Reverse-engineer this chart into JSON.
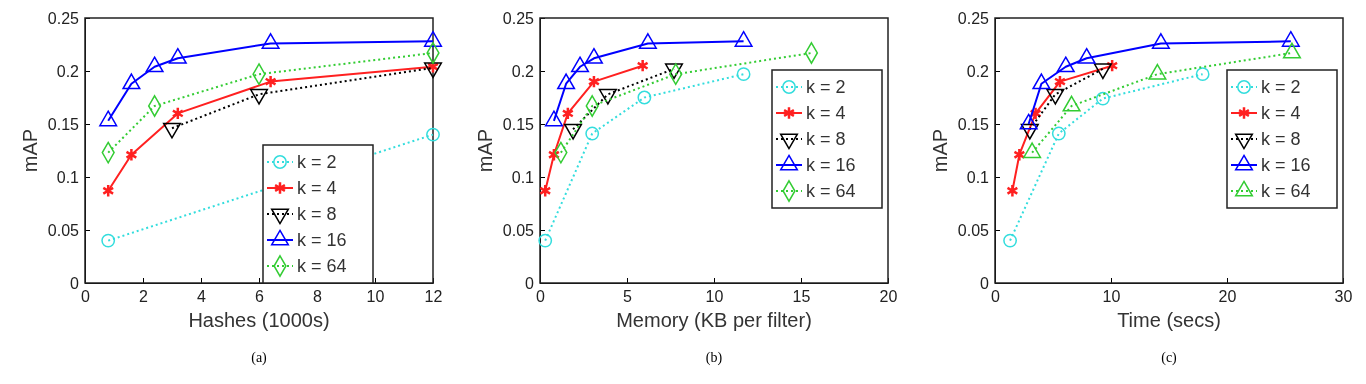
{
  "chart_data": [
    {
      "type": "line",
      "xlabel": "Hashes (1000s)",
      "ylabel": "mAP",
      "annotations": [
        "(a)"
      ],
      "xlim": [
        0,
        12
      ],
      "xticks": [
        0,
        2,
        4,
        6,
        8,
        10,
        12
      ],
      "ylim": [
        0,
        0.25
      ],
      "yticks": [
        0,
        0.05,
        0.1,
        0.15,
        0.2,
        0.25
      ],
      "grid": false,
      "legend": "bottom right",
      "series": [
        {
          "name": "k = 2",
          "color": "#33dddd",
          "marker": "circle",
          "line_style": "dotted",
          "x": [
            0.8,
            12
          ],
          "values": [
            0.04,
            0.14
          ]
        },
        {
          "name": "k = 4",
          "color": "#ff2020",
          "marker": "cross",
          "line_style": "solid",
          "x": [
            0.8,
            1.6,
            3.2,
            6.4,
            12
          ],
          "values": [
            0.087,
            0.121,
            0.16,
            0.19,
            0.204
          ]
        },
        {
          "name": "k = 8",
          "color": "#000000",
          "marker": "triangle-down",
          "line_style": "dotted",
          "x": [
            3,
            6,
            12
          ],
          "values": [
            0.146,
            0.178,
            0.203
          ]
        },
        {
          "name": "k = 16",
          "color": "#0000ff",
          "marker": "triangle",
          "line_style": "solid",
          "x": [
            0.8,
            1.6,
            2.4,
            3.2,
            6.4,
            12
          ],
          "values": [
            0.153,
            0.188,
            0.204,
            0.212,
            0.226,
            0.228
          ]
        },
        {
          "name": "k = 64",
          "color": "#33cc33",
          "marker": "diamond",
          "line_style": "dotted",
          "x": [
            0.8,
            2.4,
            6,
            12
          ],
          "values": [
            0.123,
            0.167,
            0.197,
            0.217
          ]
        }
      ]
    },
    {
      "type": "line",
      "xlabel": "Memory (KB per filter)",
      "ylabel": "mAP",
      "annotations": [
        "(b)"
      ],
      "xlim": [
        0,
        20
      ],
      "xticks": [
        0,
        5,
        10,
        15,
        20
      ],
      "ylim": [
        0,
        0.25
      ],
      "yticks": [
        0,
        0.05,
        0.1,
        0.15,
        0.2,
        0.25
      ],
      "grid": false,
      "legend": "right",
      "series": [
        {
          "name": "k = 2",
          "color": "#33dddd",
          "marker": "circle",
          "line_style": "dotted",
          "x": [
            0.3,
            3,
            6,
            11.7
          ],
          "values": [
            0.04,
            0.141,
            0.175,
            0.197
          ]
        },
        {
          "name": "k = 4",
          "color": "#ff2020",
          "marker": "cross",
          "line_style": "solid",
          "x": [
            0.3,
            0.8,
            1.6,
            3.1,
            5.9
          ],
          "values": [
            0.087,
            0.121,
            0.16,
            0.19,
            0.205
          ]
        },
        {
          "name": "k = 8",
          "color": "#000000",
          "marker": "triangle-down",
          "line_style": "dotted",
          "x": [
            1.9,
            3.9,
            7.7
          ],
          "values": [
            0.145,
            0.178,
            0.202
          ]
        },
        {
          "name": "k = 16",
          "color": "#0000ff",
          "marker": "triangle",
          "line_style": "solid",
          "x": [
            0.8,
            1.5,
            2.3,
            3.1,
            6.2,
            11.7
          ],
          "values": [
            0.153,
            0.188,
            0.204,
            0.212,
            0.226,
            0.228
          ]
        },
        {
          "name": "k = 64",
          "color": "#33cc33",
          "marker": "diamond",
          "line_style": "dotted",
          "x": [
            1.2,
            3,
            7.8,
            15.6
          ],
          "values": [
            0.123,
            0.167,
            0.197,
            0.217
          ]
        }
      ]
    },
    {
      "type": "line",
      "xlabel": "Time (secs)",
      "ylabel": "mAP",
      "annotations": [
        "(c)"
      ],
      "xlim": [
        0,
        30
      ],
      "xticks": [
        0,
        10,
        20,
        30
      ],
      "ylim": [
        0,
        0.25
      ],
      "yticks": [
        0,
        0.05,
        0.1,
        0.15,
        0.2,
        0.25
      ],
      "grid": false,
      "legend": "right",
      "series": [
        {
          "name": "k = 2",
          "color": "#33dddd",
          "marker": "circle",
          "line_style": "dotted",
          "x": [
            1.3,
            5.5,
            9.3,
            17.9
          ],
          "values": [
            0.04,
            0.141,
            0.174,
            0.197
          ]
        },
        {
          "name": "k = 4",
          "color": "#ff2020",
          "marker": "cross",
          "line_style": "solid",
          "x": [
            1.5,
            2.1,
            3.5,
            5.6,
            10.1
          ],
          "values": [
            0.087,
            0.121,
            0.16,
            0.19,
            0.205
          ]
        },
        {
          "name": "k = 8",
          "color": "#000000",
          "marker": "triangle-down",
          "line_style": "dotted",
          "x": [
            3,
            5.2,
            9.3
          ],
          "values": [
            0.145,
            0.178,
            0.202
          ]
        },
        {
          "name": "k = 16",
          "color": "#0000ff",
          "marker": "triangle",
          "line_style": "solid",
          "x": [
            2.9,
            4,
            6.1,
            7.9,
            14.3,
            25.5
          ],
          "values": [
            0.15,
            0.188,
            0.204,
            0.212,
            0.226,
            0.228
          ]
        },
        {
          "name": "k = 64",
          "color": "#33cc33",
          "marker": "triangle",
          "line_style": "dotted",
          "x": [
            3.2,
            6.6,
            14,
            25.6
          ],
          "values": [
            0.123,
            0.167,
            0.197,
            0.217
          ]
        }
      ]
    }
  ]
}
